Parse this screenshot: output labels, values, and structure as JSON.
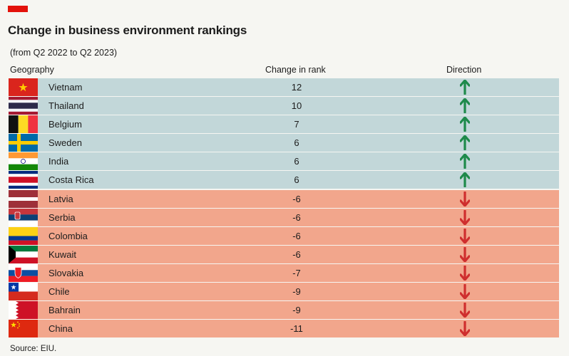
{
  "brand": {
    "accent": "#e3120b"
  },
  "title": "Change in business environment rankings",
  "subtitle": "(from Q2 2022 to Q2 2023)",
  "columns": {
    "geography": "Geography",
    "change": "Change in rank",
    "direction": "Direction"
  },
  "source": "Source: EIU.",
  "colors": {
    "up_row": "#c2d7d9",
    "down_row": "#f2a68c",
    "up_arrow": "#1e8a4a",
    "down_arrow": "#cf2e2e"
  },
  "chart_data": {
    "type": "table",
    "title": "Change in business environment rankings",
    "subtitle": "(from Q2 2022 to Q2 2023)",
    "columns": [
      "Geography",
      "Change in rank",
      "Direction"
    ],
    "rows": [
      {
        "country": "Vietnam",
        "change": 12,
        "label": "12",
        "direction": "up",
        "flag": "vietnam"
      },
      {
        "country": "Thailand",
        "change": 10,
        "label": "10",
        "direction": "up",
        "flag": "thailand"
      },
      {
        "country": "Belgium",
        "change": 7,
        "label": "7",
        "direction": "up",
        "flag": "belgium"
      },
      {
        "country": "Sweden",
        "change": 6,
        "label": "6",
        "direction": "up",
        "flag": "sweden"
      },
      {
        "country": "India",
        "change": 6,
        "label": "6",
        "direction": "up",
        "flag": "india"
      },
      {
        "country": "Costa Rica",
        "change": 6,
        "label": "6",
        "direction": "up",
        "flag": "costa-rica"
      },
      {
        "country": "Latvia",
        "change": -6,
        "label": "-6",
        "direction": "down",
        "flag": "latvia"
      },
      {
        "country": "Serbia",
        "change": -6,
        "label": "-6",
        "direction": "down",
        "flag": "serbia"
      },
      {
        "country": "Colombia",
        "change": -6,
        "label": "-6",
        "direction": "down",
        "flag": "colombia"
      },
      {
        "country": "Kuwait",
        "change": -6,
        "label": "-6",
        "direction": "down",
        "flag": "kuwait"
      },
      {
        "country": "Slovakia",
        "change": -7,
        "label": "-7",
        "direction": "down",
        "flag": "slovakia"
      },
      {
        "country": "Chile",
        "change": -9,
        "label": "-9",
        "direction": "down",
        "flag": "chile"
      },
      {
        "country": "Bahrain",
        "change": -9,
        "label": "-9",
        "direction": "down",
        "flag": "bahrain"
      },
      {
        "country": "China",
        "change": -11,
        "label": "-11",
        "direction": "down",
        "flag": "china"
      }
    ]
  }
}
